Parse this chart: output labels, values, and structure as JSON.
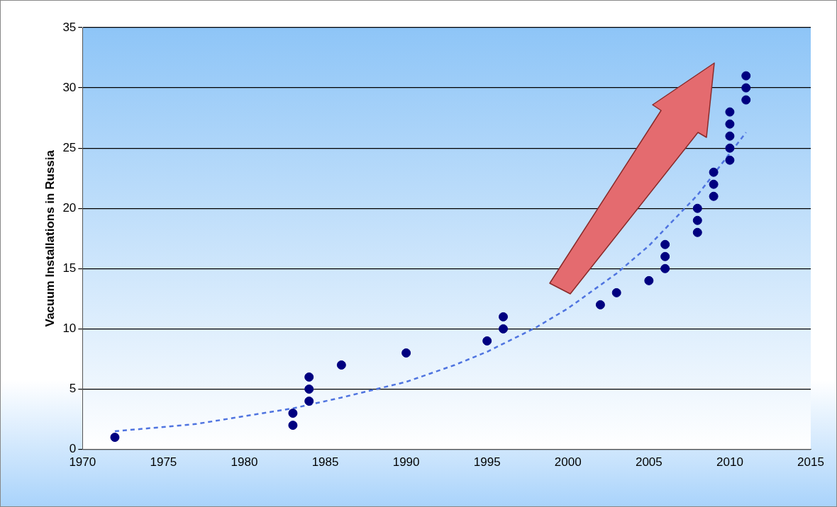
{
  "chart_data": {
    "type": "scatter",
    "ylabel": "Vacuum Installations in Russia",
    "xlim": [
      1970,
      2015
    ],
    "xticks": [
      1970,
      1975,
      1980,
      1985,
      1990,
      1995,
      2000,
      2005,
      2010,
      2015
    ],
    "ylim": [
      0,
      35
    ],
    "yticks": [
      0,
      5,
      10,
      15,
      20,
      25,
      30,
      35
    ],
    "grid": "y",
    "marker": "circle",
    "series": [
      {
        "type": "scatter",
        "color": "#000080",
        "x": [
          1972,
          1983,
          1983,
          1984,
          1984,
          1984,
          1986,
          1990,
          1995,
          1996,
          1996,
          2002,
          2003,
          2005,
          2006,
          2006,
          2006,
          2008,
          2008,
          2008,
          2009,
          2009,
          2009,
          2010,
          2010,
          2010,
          2010,
          2010,
          2011,
          2011,
          2011
        ],
        "values": [
          1,
          2,
          3,
          4,
          5,
          6,
          7,
          8,
          9,
          10,
          11,
          12,
          13,
          14,
          15,
          16,
          17,
          18,
          19,
          20,
          21,
          22,
          23,
          24,
          25,
          26,
          27,
          28,
          29,
          30,
          31
        ]
      },
      {
        "type": "line",
        "color": "#4f74e0",
        "line_style": "dashed",
        "marker": "none",
        "x": [
          1972,
          1977,
          1983,
          1986,
          1990,
          1993,
          1995,
          1998,
          2000,
          2003,
          2005,
          2008,
          2011
        ],
        "values": [
          1.5,
          2.1,
          3.4,
          4.3,
          5.6,
          7,
          8.1,
          10.1,
          11.7,
          14.6,
          16.9,
          21.1,
          26.3
        ]
      }
    ]
  }
}
